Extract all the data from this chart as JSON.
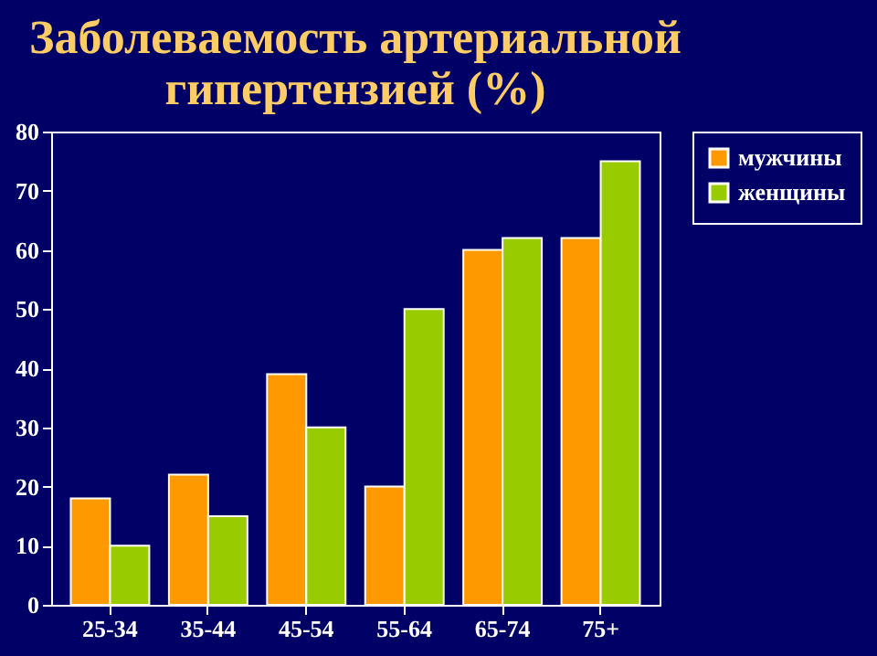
{
  "chart_data": {
    "type": "bar",
    "title": "Заболеваемость артериальной гипертензией (%)",
    "categories": [
      "25-34",
      "35-44",
      "45-54",
      "55-64",
      "65-74",
      "75+"
    ],
    "series": [
      {
        "name": "мужчины",
        "color": "#ff9900",
        "values": [
          18,
          22,
          39,
          20,
          60,
          62
        ]
      },
      {
        "name": "женщины",
        "color": "#99cc00",
        "values": [
          10,
          15,
          30,
          50,
          62,
          75
        ]
      }
    ],
    "ylim": [
      0,
      80
    ],
    "yticks": [
      0,
      10,
      20,
      30,
      40,
      50,
      60,
      70,
      80
    ],
    "grid": false,
    "legend": "right"
  }
}
